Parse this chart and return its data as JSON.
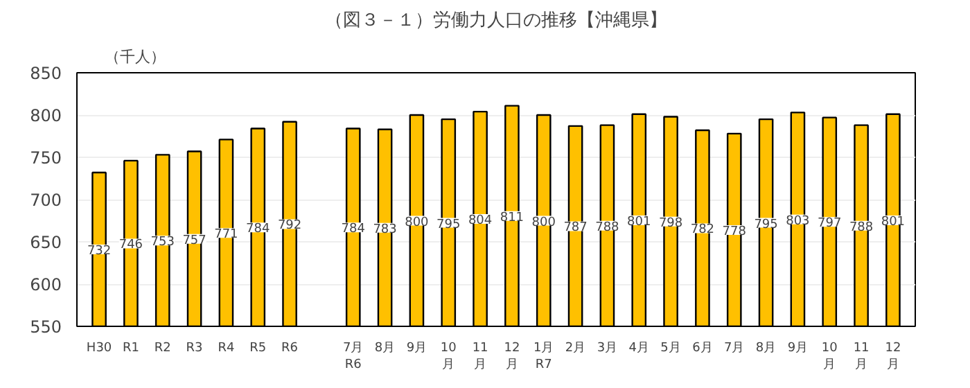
{
  "chart_data": {
    "type": "bar",
    "title": "（図３－１）労働力人口の推移【沖縄県】",
    "ylabel": "（千人）",
    "categories": [
      "H30",
      "R1",
      "R2",
      "R3",
      "R4",
      "R5",
      "R6",
      null,
      "7月\nR6",
      "8月",
      "9月",
      "10\n月",
      "11\n月",
      "12\n月",
      "1月\nR7",
      "2月",
      "3月",
      "4月",
      "5月",
      "6月",
      "7月",
      "8月",
      "9月",
      "10\n月",
      "11\n月",
      "12\n月"
    ],
    "values": [
      732,
      746,
      753,
      757,
      771,
      784,
      792,
      null,
      784,
      783,
      800,
      795,
      804,
      811,
      800,
      787,
      788,
      801,
      798,
      782,
      778,
      795,
      803,
      797,
      788,
      801
    ],
    "color": "#ffc000",
    "ylim": [
      550,
      850
    ],
    "yticks": [
      550,
      600,
      650,
      700,
      750,
      800,
      850
    ],
    "grid": "y",
    "data_labels": true
  }
}
